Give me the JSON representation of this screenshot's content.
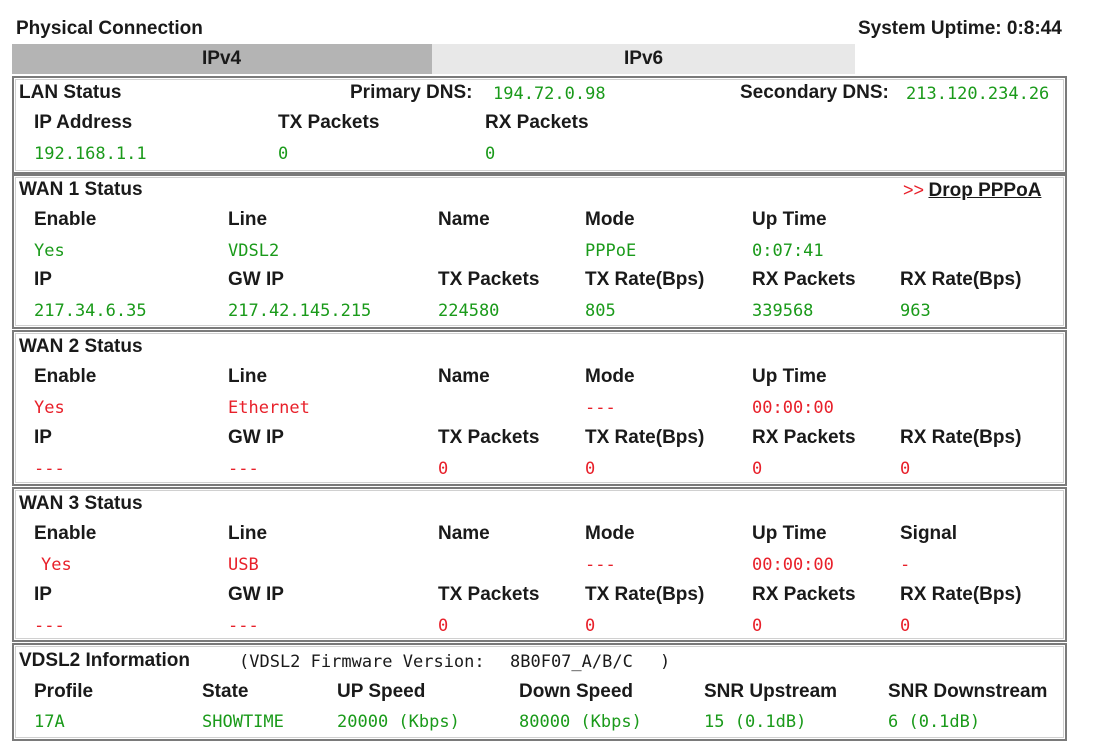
{
  "header": {
    "title": "Physical Connection",
    "uptime_label": "System Uptime: 0:8:44"
  },
  "tabs": [
    {
      "label": "IPv4",
      "active": true
    },
    {
      "label": "IPv6",
      "active": false
    }
  ],
  "lan": {
    "title": "LAN Status",
    "primary_dns_label": "Primary DNS:",
    "primary_dns": "194.72.0.98",
    "secondary_dns_label": "Secondary DNS:",
    "secondary_dns": "213.120.234.26",
    "headers": [
      "IP Address",
      "TX Packets",
      "RX Packets"
    ],
    "values": [
      "192.168.1.1",
      "0",
      "0"
    ]
  },
  "wan1": {
    "title": "WAN 1 Status",
    "action_arrows": ">>",
    "action_label": "Drop PPPoA",
    "row1_headers": [
      "Enable",
      "Line",
      "Name",
      "Mode",
      "Up Time"
    ],
    "row1_values": [
      "Yes",
      "VDSL2",
      "",
      "PPPoE",
      "0:07:41"
    ],
    "row2_headers": [
      "IP",
      "GW IP",
      "TX Packets",
      "TX Rate(Bps)",
      "RX Packets",
      "RX Rate(Bps)"
    ],
    "row2_values": [
      "217.34.6.35",
      "217.42.145.215",
      "224580",
      "805",
      "339568",
      "963"
    ]
  },
  "wan2": {
    "title": "WAN 2 Status",
    "row1_headers": [
      "Enable",
      "Line",
      "Name",
      "Mode",
      "Up Time"
    ],
    "row1_values": [
      "Yes",
      "Ethernet",
      "",
      "---",
      "00:00:00"
    ],
    "row2_headers": [
      "IP",
      "GW IP",
      "TX Packets",
      "TX Rate(Bps)",
      "RX Packets",
      "RX Rate(Bps)"
    ],
    "row2_values": [
      "---",
      "---",
      "0",
      "0",
      "0",
      "0"
    ]
  },
  "wan3": {
    "title": "WAN 3 Status",
    "row1_headers": [
      "Enable",
      "Line",
      "Name",
      "Mode",
      "Up Time",
      "Signal"
    ],
    "row1_values": [
      "Yes",
      "USB",
      "",
      "---",
      "00:00:00",
      "-"
    ],
    "row2_headers": [
      "IP",
      "GW IP",
      "TX Packets",
      "TX Rate(Bps)",
      "RX Packets",
      "RX Rate(Bps)"
    ],
    "row2_values": [
      "---",
      "---",
      "0",
      "0",
      "0",
      "0"
    ]
  },
  "vdsl": {
    "title": "VDSL2 Information",
    "firmware_prefix": "(VDSL2 Firmware Version:",
    "firmware_version": "8B0F07_A/B/C",
    "firmware_suffix": ")",
    "headers": [
      "Profile",
      "State",
      "UP Speed",
      "Down Speed",
      "SNR Upstream",
      "SNR Downstream"
    ],
    "values": [
      "17A",
      "SHOWTIME",
      "20000 (Kbps)",
      "80000 (Kbps)",
      "15 (0.1dB)",
      "6 (0.1dB)"
    ]
  },
  "colors": {
    "ok_green": "#1a9a1a",
    "error_red": "#e8202a",
    "active_tab": "#b4b4b4",
    "inactive_tab": "#e8e8e8"
  }
}
